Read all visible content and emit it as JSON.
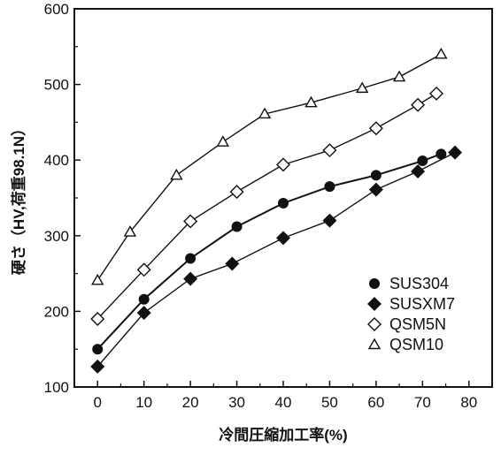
{
  "chart_data": {
    "type": "line",
    "title": "",
    "xlabel": "冷間圧縮加工率(%)",
    "ylabel": "硬さ（HV,荷重98.1N）",
    "xlim": [
      -5,
      85
    ],
    "ylim": [
      100,
      600
    ],
    "x_ticks": [
      "0",
      "10",
      "20",
      "30",
      "40",
      "50",
      "60",
      "70",
      "80"
    ],
    "y_ticks": [
      "100",
      "200",
      "300",
      "400",
      "500",
      "600"
    ],
    "grid": false,
    "legend_position": "bottom-right",
    "series": [
      {
        "name": "SUS304",
        "marker": "filled-circle",
        "color": "#111111",
        "x": [
          0,
          10,
          20,
          30,
          40,
          50,
          60,
          70,
          74
        ],
        "y": [
          150,
          216,
          270,
          312,
          343,
          365,
          380,
          399,
          408
        ]
      },
      {
        "name": "SUSXM7",
        "marker": "filled-diamond",
        "color": "#111111",
        "x": [
          0,
          10,
          20,
          29,
          40,
          50,
          60,
          69,
          77
        ],
        "y": [
          127,
          198,
          243,
          263,
          297,
          320,
          361,
          385,
          410
        ]
      },
      {
        "name": "QSM5N",
        "marker": "open-diamond",
        "color": "#111111",
        "x": [
          0,
          10,
          20,
          30,
          40,
          50,
          60,
          69,
          73
        ],
        "y": [
          190,
          255,
          319,
          358,
          394,
          413,
          442,
          473,
          488
        ]
      },
      {
        "name": "QSM10",
        "marker": "open-triangle",
        "color": "#111111",
        "x": [
          0,
          7,
          17,
          27,
          36,
          46,
          57,
          65,
          74
        ],
        "y": [
          241,
          305,
          380,
          424,
          461,
          476,
          495,
          510,
          540
        ]
      }
    ]
  }
}
